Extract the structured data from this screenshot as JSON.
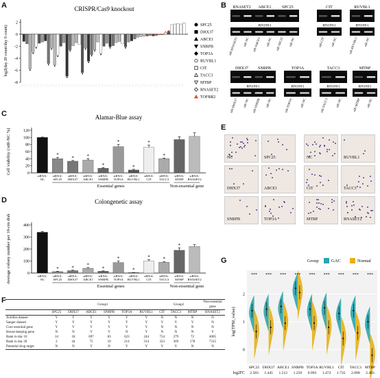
{
  "panel_labels": {
    "A": "A",
    "B": "B",
    "C": "C",
    "D": "D",
    "E": "E",
    "F": "F",
    "G": "G"
  },
  "panelA": {
    "title": "CRISPR/Cas9 knockout",
    "ylabel": "log2(day 20 count/day 0 count)",
    "yticks": [
      "2",
      "0",
      "-2",
      "-4",
      "-6",
      "-8"
    ],
    "legend": [
      {
        "name": "SPC25",
        "marker": "circle-filled"
      },
      {
        "name": "DHX37",
        "marker": "square-filled"
      },
      {
        "name": "ABCE1",
        "marker": "triangle-filled"
      },
      {
        "name": "SNRPB",
        "marker": "triangle-down-filled"
      },
      {
        "name": "TOP3A",
        "marker": "diamond-filled"
      },
      {
        "name": "RUVBL1",
        "marker": "circle-open"
      },
      {
        "name": "CIT",
        "marker": "square-open"
      },
      {
        "name": "TACC3",
        "marker": "triangle-open"
      },
      {
        "name": "MTBP",
        "marker": "triangle-down-open"
      },
      {
        "name": "RNASET2",
        "marker": "diamond-open"
      },
      {
        "name": "TOFBR2",
        "marker": "triangle-red"
      }
    ],
    "chart_data": {
      "type": "bar",
      "ylabel": "log2(day 20 count/day 0 count)",
      "ylim": [
        -8,
        2.5
      ],
      "values": [
        -1.2,
        -1.6,
        -5.8,
        -3.0,
        -2.1,
        -1.5,
        -1.3,
        -1.1,
        -4.9,
        -2.3,
        -5.1,
        -3.5,
        -2.0,
        -1.4,
        -7.0,
        -2.6,
        -1.9,
        -1.4,
        -1.7,
        -6.4,
        -2.3,
        -4.5,
        -3.4,
        -2.6,
        -1.3,
        -3.2,
        -2.0,
        -1.5,
        -2.1,
        -1.9,
        -1.4,
        -1.2,
        -1.6,
        -2.1,
        -1.3,
        -1.1,
        -0.8,
        -0.5,
        -0.4,
        -0.3,
        -0.3,
        -0.2,
        -0.3,
        -0.2,
        -0.1,
        -0.1,
        0.3,
        0.5,
        1.6,
        1.7,
        1.8,
        1.7,
        1.9
      ]
    }
  },
  "panelB": {
    "gels": [
      {
        "top_labels": [
          "RNASET2",
          "ABCE1",
          "SPC25"
        ],
        "ref": "RN18S1",
        "lanes": [
          "siR-RNASET2",
          "siR-NC",
          "siR-ABCE1",
          "siR-NC",
          "siR-SPC25",
          "siR-NC"
        ]
      },
      {
        "top_labels": [
          "CIT"
        ],
        "ref": "RN18S1",
        "lanes": [
          "siR-CIT",
          "siR-NC"
        ]
      },
      {
        "top_labels": [
          "RUVBL1"
        ],
        "ref": "RN18S1",
        "lanes": [
          "siR-RUVBL1",
          "siR-NC"
        ]
      },
      {
        "top_labels": [
          "DHX37",
          "SNRPB"
        ],
        "ref": "RN18S1",
        "lanes": [
          "siR-DHX37",
          "siR-NC",
          "siR-SNRPB",
          "siR-NC"
        ]
      },
      {
        "top_labels": [
          "TOP3A"
        ],
        "ref": "RN18S1",
        "lanes": [
          "siR-TOP3A",
          "siR-NC"
        ]
      },
      {
        "top_labels": [
          "TACC3"
        ],
        "ref": "RN18S1",
        "lanes": [
          "siR-TACC3",
          "siR-NC"
        ]
      },
      {
        "top_labels": [
          "MTBP"
        ],
        "ref": "RN18S1",
        "lanes": [
          "siR-MTBP",
          "siR-NC"
        ]
      }
    ]
  },
  "panelC": {
    "title": "Alamar-Blue assay",
    "ylabel": "Cell viability (/siR-NC %)",
    "yticks": [
      "0",
      "20",
      "40",
      "60",
      "80",
      "100",
      "120"
    ],
    "group_labels": [
      "Essential genes",
      "Non-essential gene"
    ],
    "chart_data": {
      "type": "bar",
      "title": "Alamar-Blue assay",
      "ylabel": "Cell viability (/siR-NC %)",
      "ylim": [
        0,
        120
      ],
      "categories": [
        "siRNA-NC",
        "siRNA-SPC25",
        "siRNA-DHX37",
        "siRNA-ABCE1",
        "siRNA-SNRPB",
        "siRNA-TOP3A",
        "siRNA-RUVBL1",
        "siRNA-CIT",
        "siRNA-TACC3",
        "siRNA-MTBP",
        "siRNA-RNASET2"
      ],
      "values": [
        100,
        40,
        33,
        36,
        13,
        74,
        8,
        72,
        40,
        94,
        103
      ],
      "errors": [
        1,
        4,
        2,
        4,
        2,
        6,
        2,
        6,
        2,
        8,
        10
      ],
      "colors": [
        "#111111",
        "#888888",
        "#777777",
        "#aaaaaa",
        "#666666",
        "#999999",
        "#555555",
        "#eeeeee",
        "#aaaaaa",
        "#666666",
        "#bbbbbb"
      ],
      "significant": [
        false,
        true,
        true,
        true,
        true,
        true,
        true,
        true,
        true,
        false,
        false
      ]
    }
  },
  "panelD": {
    "title": "Colongenetic assay",
    "ylabel": "Average colony number per 10-cm dish",
    "yticks": [
      "0",
      "100",
      "200",
      "300",
      "400"
    ],
    "group_labels": [
      "Essential genes",
      "Non-essential gene"
    ],
    "chart_data": {
      "type": "bar",
      "title": "Colongenetic assay",
      "ylabel": "Average colony number per 10-cm dish",
      "ylim": [
        0,
        400
      ],
      "categories": [
        "siRNA-NC",
        "siRNA-SPC25",
        "siRNA-DHX37",
        "siRNA-ABCE1",
        "siRNA-SNRPB",
        "siRNA-TOP3A",
        "siRNA-RUVBL1",
        "siRNA-CIT",
        "siRNA-TACC3",
        "siRNA-MTBP",
        "siRNA-RNASET2"
      ],
      "values": [
        340,
        12,
        20,
        40,
        15,
        88,
        4,
        100,
        90,
        190,
        222
      ],
      "errors": [
        6,
        3,
        4,
        6,
        3,
        12,
        1,
        12,
        6,
        20,
        14
      ],
      "colors": [
        "#111111",
        "#888888",
        "#777777",
        "#aaaaaa",
        "#666666",
        "#999999",
        "#555555",
        "#eeeeee",
        "#aaaaaa",
        "#666666",
        "#bbbbbb"
      ],
      "significant": [
        false,
        true,
        true,
        true,
        true,
        true,
        true,
        true,
        true,
        true,
        false
      ]
    }
  },
  "panelE": {
    "cells": [
      {
        "label": "NC",
        "dots": 22
      },
      {
        "label": "SPC25",
        "dots": 6
      },
      {
        "label": "NC",
        "dots": 24
      },
      {
        "label": "RUVBL1",
        "dots": 3
      },
      {
        "label": "DHX37",
        "dots": 5
      },
      {
        "label": "ABCE1",
        "dots": 8
      },
      {
        "label": "CIT",
        "dots": 12
      },
      {
        "label": "TACC3",
        "dots": 10
      },
      {
        "label": "SNRPB",
        "dots": 4
      },
      {
        "label": "TOP3A",
        "dots": 14
      },
      {
        "label": "MTBP",
        "dots": 18
      },
      {
        "label": "RNASET2",
        "dots": 22
      }
    ]
  },
  "panelF": {
    "group_headers": [
      "Group1",
      "Group2",
      "Non-essential gene"
    ],
    "columns": [
      "SPC25",
      "DHX37",
      "ABCE1",
      "SNRPB",
      "TOP3A",
      "RUVBL1",
      "CIT",
      "TACC3",
      "MTBP",
      "RNASET2"
    ],
    "rows": [
      {
        "label": "Achilles dataset",
        "cells": [
          "Y",
          "Y",
          "Y",
          "Y",
          "Y",
          "Y",
          "N",
          "N",
          "N",
          "N"
        ]
      },
      {
        "label": "Sanger dataset",
        "cells": [
          "Y",
          "Y",
          "Y",
          "Y",
          "Y",
          "Y",
          "Y",
          "Y",
          "Y",
          "N"
        ]
      },
      {
        "label": "Core essential gene",
        "cells": [
          "Y",
          "Y",
          "Y",
          "Y",
          "Y",
          "Y",
          "N",
          "N",
          "N",
          "N"
        ]
      },
      {
        "label": "House-keeping gene",
        "cells": [
          "N",
          "N",
          "Y",
          "Y",
          "N",
          "Y",
          "N",
          "N",
          "N",
          "Y"
        ]
      },
      {
        "label": "Rank in day 10",
        "cells": [
          "14",
          "18",
          "697",
          "83",
          "623",
          "244",
          "754",
          "279",
          "72",
          "4005"
        ]
      },
      {
        "label": "Rank in day 20",
        "cells": [
          "2",
          "44",
          "75",
          "10",
          "214",
          "314",
          "323",
          "369",
          "178",
          "7315"
        ]
      },
      {
        "label": "Potential drug target",
        "cells": [
          "N",
          "N",
          "Y",
          "N",
          "Y",
          "Y",
          "Y",
          "Y",
          "N",
          "N"
        ]
      }
    ]
  },
  "panelG": {
    "legend_title": "Group",
    "legend": [
      {
        "name": "GAC",
        "color": "#2aa6ad"
      },
      {
        "name": "Normal",
        "color": "#e6b117"
      }
    ],
    "ylabel": "log(TPM_value)",
    "yticks": [
      "0",
      "1",
      "2"
    ],
    "fc_label": "log2FC",
    "chart_data": {
      "type": "violin",
      "ylabel": "log(TPM_value)",
      "categories": [
        "SPC25",
        "DHX37",
        "ABCE1",
        "SNRPB",
        "TOP3A",
        "RUVBL1",
        "CIT",
        "TACC3",
        "MTBP"
      ],
      "significance": [
        "***",
        "***",
        "***",
        "***",
        "***",
        "***",
        "***",
        "***",
        "***"
      ],
      "gac_median": [
        2.8,
        2.9,
        3.1,
        4.4,
        2.9,
        3.0,
        2.6,
        2.8,
        2.0
      ],
      "normal_median": [
        1.3,
        1.6,
        1.9,
        4.1,
        1.9,
        1.6,
        0.8,
        1.2,
        -0.4
      ],
      "log2fc": [
        "2.583",
        "1.445",
        "1.512",
        "1.259",
        "0.993",
        "1.472",
        "1.735",
        "2.098",
        "2.403"
      ]
    }
  }
}
